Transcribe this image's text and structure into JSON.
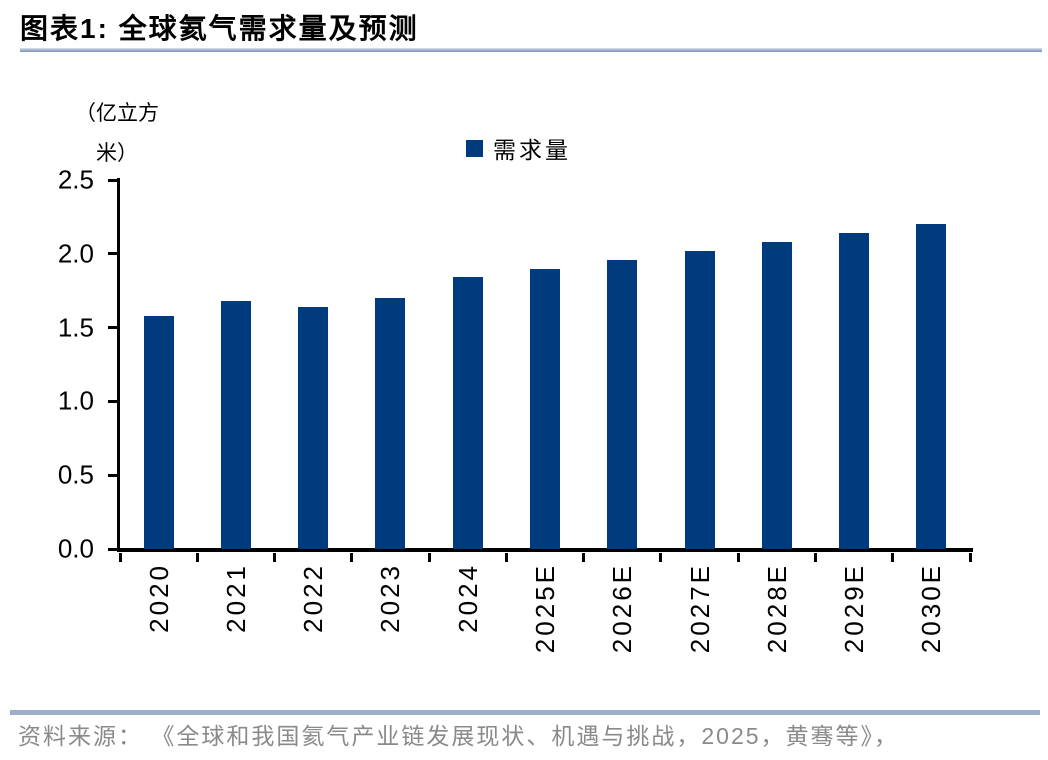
{
  "header": {
    "title": "图表1:  全球氦气需求量及预测"
  },
  "chart_data": {
    "type": "bar",
    "title": "全球氦气需求量及预测",
    "unit_line1": "（亿立方",
    "unit_line2": "米）",
    "ylabel": "（亿立方米）",
    "xlabel": "",
    "legend": [
      {
        "label": "需求量",
        "color": "#003c7d"
      }
    ],
    "legend_position": "top-center",
    "categories": [
      "2020",
      "2021",
      "2022",
      "2023",
      "2024",
      "2025E",
      "2026E",
      "2027E",
      "2028E",
      "2029E",
      "2030E"
    ],
    "values": [
      1.58,
      1.68,
      1.64,
      1.7,
      1.84,
      1.9,
      1.96,
      2.02,
      2.08,
      2.14,
      2.2
    ],
    "ylim": [
      0,
      2.5
    ],
    "yticks": [
      "2.5",
      "2.0",
      "1.5",
      "1.0",
      "0.5",
      "0.0"
    ],
    "grid": false,
    "bar_color": "#003c7d"
  },
  "footer": {
    "source": "资料来源： 《全球和我国氦气产业链发展现状、机遇与挑战，2025，黄骞等》，"
  },
  "colors": {
    "bar": "#003c7d",
    "rule_line": "#9cafc7",
    "source_text": "#8a8a8a"
  }
}
